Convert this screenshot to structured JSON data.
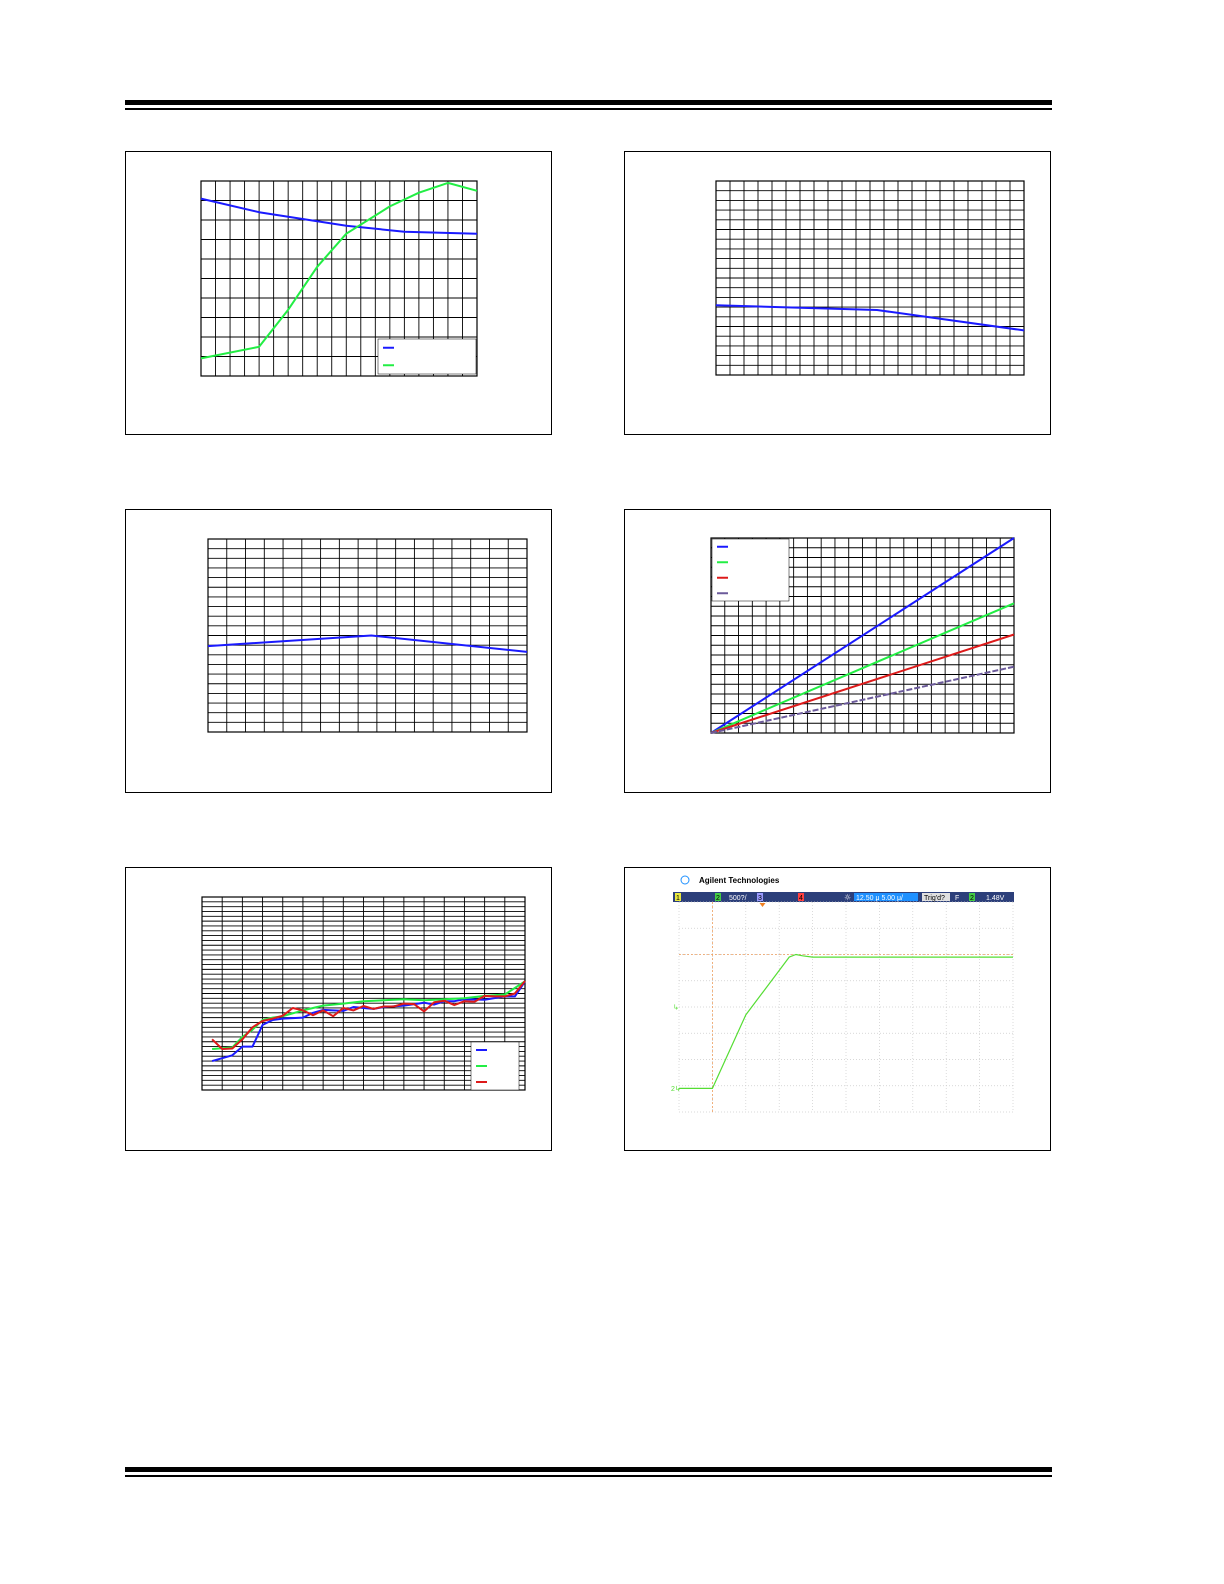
{
  "page": {
    "header_rule": true,
    "footer_rule": true
  },
  "colors": {
    "blue": "#1a1aff",
    "green": "#22ee44",
    "red": "#dd1a1a",
    "purple": "#6b5a9a",
    "scope_green": "#55dd33",
    "scope_bar": "#2c3f7a",
    "scope_highlight": "#1e90ff"
  },
  "chart_data": [
    {
      "id": "top-left",
      "type": "line",
      "grid": true,
      "xlim": [
        0,
        19
      ],
      "ylim": [
        0,
        10
      ],
      "x_divisions": 19,
      "y_divisions": 10,
      "legend": {
        "position": "bottom-right",
        "entries": [
          {
            "color": "blue"
          },
          {
            "color": "green"
          }
        ]
      },
      "series": [
        {
          "color": "blue",
          "x": [
            0,
            4,
            10,
            14,
            19
          ],
          "y": [
            9.1,
            8.4,
            7.7,
            7.4,
            7.3
          ]
        },
        {
          "color": "green",
          "x": [
            0,
            4,
            6,
            8,
            10,
            13,
            15,
            17,
            19
          ],
          "y": [
            0.9,
            1.5,
            3.4,
            5.6,
            7.3,
            8.7,
            9.4,
            9.9,
            9.5
          ]
        }
      ]
    },
    {
      "id": "top-right",
      "type": "line",
      "grid": true,
      "xlim": [
        0,
        22
      ],
      "ylim": [
        0,
        20
      ],
      "x_divisions": 22,
      "y_divisions": 20,
      "series": [
        {
          "color": "blue",
          "x": [
            0,
            11.5,
            22
          ],
          "y": [
            7.2,
            6.7,
            4.6
          ]
        }
      ]
    },
    {
      "id": "middle-left",
      "type": "line",
      "grid": true,
      "xlim": [
        0,
        17
      ],
      "ylim": [
        0,
        20
      ],
      "x_divisions": 17,
      "y_divisions": 20,
      "series": [
        {
          "color": "blue",
          "x": [
            0,
            8.7,
            17
          ],
          "y": [
            8.9,
            10.0,
            8.3
          ]
        }
      ]
    },
    {
      "id": "middle-right",
      "type": "line",
      "grid": true,
      "xlim": [
        0,
        22
      ],
      "ylim": [
        0,
        20
      ],
      "x_divisions": 22,
      "y_divisions": 20,
      "legend": {
        "position": "top-left",
        "entries": [
          {
            "color": "blue"
          },
          {
            "color": "green"
          },
          {
            "color": "red"
          },
          {
            "color": "purple"
          }
        ]
      },
      "series": [
        {
          "color": "blue",
          "x": [
            0,
            22
          ],
          "y": [
            0,
            20
          ]
        },
        {
          "color": "green",
          "x": [
            0,
            22
          ],
          "y": [
            0,
            13.3
          ]
        },
        {
          "color": "red",
          "x": [
            0,
            22
          ],
          "y": [
            0,
            10.1
          ]
        },
        {
          "color": "purple",
          "x": [
            0,
            22
          ],
          "y": [
            0,
            6.8
          ],
          "dashed": true
        }
      ]
    },
    {
      "id": "bottom-left",
      "type": "line",
      "grid": true,
      "xlim": [
        0,
        16
      ],
      "ylim": [
        0,
        40
      ],
      "x_divisions": 16,
      "y_divisions": 40,
      "legend": {
        "position": "bottom-right",
        "entries": [
          {
            "color": "blue"
          },
          {
            "color": "green"
          },
          {
            "color": "red"
          }
        ]
      },
      "series": [
        {
          "color": "blue",
          "x": [
            0.5,
            1.5,
            2,
            2.5,
            3,
            3.5,
            4,
            5,
            5.5,
            6,
            7,
            7.5,
            8,
            8.5,
            9,
            10,
            11,
            11.5,
            12,
            12.5,
            13,
            14,
            15,
            15.5,
            16
          ],
          "y": [
            6,
            7.2,
            9,
            9,
            13.5,
            14.5,
            14.8,
            15,
            16,
            16.6,
            16.4,
            17.2,
            17.0,
            16.8,
            17.2,
            17.5,
            18.1,
            17.7,
            18.4,
            18.4,
            18.8,
            18.7,
            19.4,
            19.4,
            22.5
          ]
        },
        {
          "color": "green",
          "x": [
            0.5,
            1.5,
            2,
            2.5,
            3,
            3.5,
            4,
            5,
            5.5,
            6,
            7,
            8,
            9,
            10,
            11,
            12,
            13,
            14,
            15,
            16
          ],
          "y": [
            8.5,
            8.8,
            11,
            12.5,
            14.5,
            15,
            15.3,
            16.5,
            17,
            17.5,
            17.9,
            18.4,
            18.6,
            18.8,
            18.6,
            18.8,
            19,
            19.5,
            19.8,
            22.5
          ]
        },
        {
          "color": "red",
          "x": [
            0.5,
            1,
            1.5,
            2,
            2.5,
            3,
            3.5,
            4,
            4.5,
            5,
            5.5,
            6,
            6.5,
            7,
            7.5,
            8,
            8.5,
            9,
            9.5,
            10,
            10.5,
            11,
            11.5,
            12,
            12.5,
            13,
            13.5,
            14,
            14.5,
            15,
            15.5,
            16
          ],
          "y": [
            10.5,
            8.5,
            8.6,
            10.5,
            13,
            14.3,
            14.8,
            15.4,
            17,
            16.5,
            15.5,
            16.5,
            15.3,
            17,
            16.5,
            17.4,
            16.8,
            17.3,
            17.3,
            17.9,
            17.8,
            16.3,
            18.2,
            18.5,
            17.6,
            18.4,
            18.3,
            19.5,
            19.4,
            19.4,
            20,
            22.6
          ]
        }
      ]
    },
    {
      "id": "bottom-right-scope",
      "type": "line",
      "grid": true,
      "xlim": [
        0,
        10
      ],
      "ylim": [
        0,
        8
      ],
      "x_divisions": 10,
      "y_divisions": 8,
      "scope": {
        "brand": "Agilent Technologies",
        "ch2_scale": "500?/",
        "timebase_delay": "12.50",
        "timebase_unit": "μ",
        "timebase_scale": "5.00",
        "timebase_scale_unit": "μ/",
        "trigger_state": "Trig'd?",
        "trigger_slope": "F",
        "trigger_channel": "2",
        "trigger_level": "1.48V",
        "ch1_tag": "1",
        "ch2_tag": "2",
        "ch3_tag": "3",
        "ch4_tag": "4",
        "marker_upper": "↳",
        "marker_lower": "2↳"
      },
      "series": [
        {
          "color": "scope_green",
          "x": [
            0,
            1.0,
            2.0,
            3.3,
            3.5,
            3.7,
            4.0,
            10
          ],
          "y": [
            0.9,
            0.9,
            3.7,
            5.9,
            6.0,
            5.95,
            5.9,
            5.9
          ]
        }
      ]
    }
  ]
}
